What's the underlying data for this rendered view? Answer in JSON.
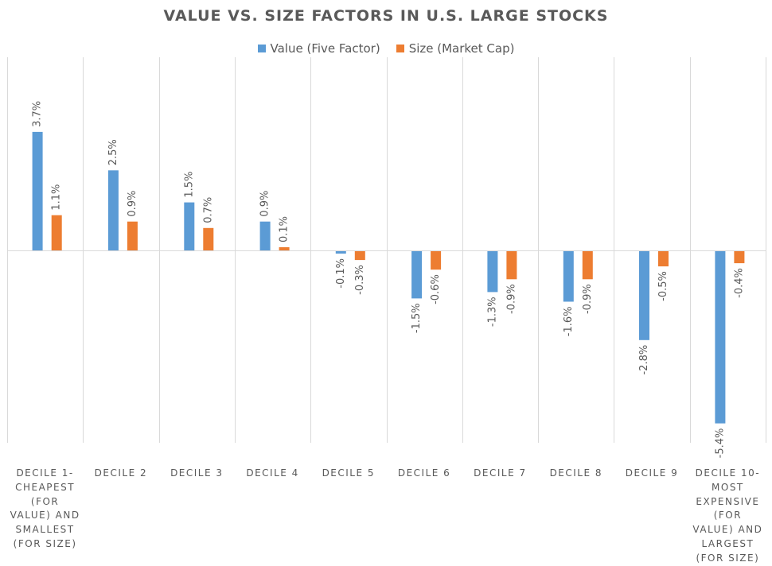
{
  "chart_data": {
    "type": "bar",
    "title": "VALUE VS. SIZE FACTORS IN U.S. LARGE STOCKS",
    "categories": [
      "DECILE 1-CHEAPEST (FOR VALUE) AND SMALLEST (FOR SIZE)",
      "DECILE 2",
      "DECILE 3",
      "DECILE 4",
      "DECILE 5",
      "DECILE 6",
      "DECILE 7",
      "DECILE 8",
      "DECILE 9",
      "DECILE 10-MOST EXPENSIVE (FOR VALUE) AND LARGEST (FOR SIZE)"
    ],
    "series": [
      {
        "name": "Value (Five Factor)",
        "color": "#5B9BD5",
        "values": [
          3.7,
          2.5,
          1.5,
          0.9,
          -0.1,
          -1.5,
          -1.3,
          -1.6,
          -2.8,
          -5.4
        ],
        "labels": [
          "3.7%",
          "2.5%",
          "1.5%",
          "0.9%",
          "-0.1%",
          "-1.5%",
          "-1.3%",
          "-1.6%",
          "-2.8%",
          "-5.4%"
        ]
      },
      {
        "name": "Size (Market Cap)",
        "color": "#ED7D31",
        "values": [
          1.1,
          0.9,
          0.7,
          0.1,
          -0.3,
          -0.6,
          -0.9,
          -0.9,
          -0.5,
          -0.4
        ],
        "labels": [
          "1.1%",
          "0.9%",
          "0.7%",
          "0.1%",
          "-0.3%",
          "-0.6%",
          "-0.9%",
          "-0.9%",
          "-0.5%",
          "-0.4%"
        ]
      }
    ],
    "ylim": [
      -6.0,
      6.2
    ],
    "grid": "vertical separators",
    "legend": "top-center",
    "xlabel": "",
    "ylabel": ""
  }
}
